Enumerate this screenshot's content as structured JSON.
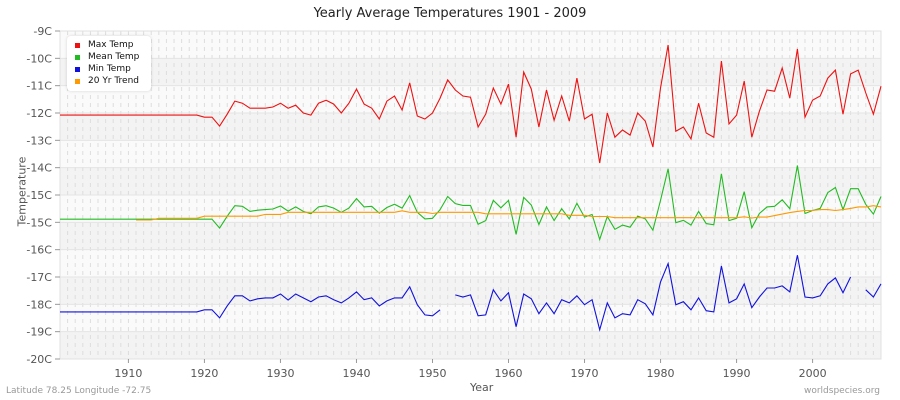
{
  "header": {
    "title": "Yearly Average Temperatures 1901 - 2009"
  },
  "axes": {
    "ylabel": "Temperature",
    "xlabel": "Year"
  },
  "footer": {
    "left": "Latitude 78.25 Longitude -72.75",
    "right": "worldspecies.org"
  },
  "legend": [
    {
      "label": "Max Temp",
      "color": "#ee1111"
    },
    {
      "label": "Mean Temp",
      "color": "#22bb22"
    },
    {
      "label": "Min Temp",
      "color": "#1111dd"
    },
    {
      "label": "20 Yr Trend",
      "color": "#ff9900"
    }
  ],
  "chart_data": {
    "type": "line",
    "title": "Yearly Average Temperatures 1901 - 2009",
    "xlabel": "Year",
    "ylabel": "Temperature",
    "x_start": 1901,
    "x_end": 2009,
    "ylim": [
      -20,
      -9
    ],
    "yticks": [
      "-9C",
      "-10C",
      "-11C",
      "-12C",
      "-13C",
      "-14C",
      "-15C",
      "-15C",
      "-16C",
      "-17C",
      "-18C",
      "-19C",
      "-20C"
    ],
    "xticks": [
      1910,
      1920,
      1930,
      1940,
      1950,
      1960,
      1970,
      1980,
      1990,
      2000
    ],
    "grid": true,
    "legend_position": "top-left",
    "series_pixels_note": "values in degrees C",
    "series": [
      {
        "name": "Max Temp",
        "color": "#ee1111",
        "start": 1901,
        "values": [
          -11.82,
          -11.82,
          -11.82,
          -11.82,
          -11.82,
          -11.82,
          -11.82,
          -11.82,
          -11.82,
          -11.82,
          -11.82,
          -11.82,
          -11.82,
          -11.82,
          -11.82,
          -11.82,
          -11.82,
          -11.82,
          -11.82,
          -11.89,
          -11.89,
          -12.19,
          -11.79,
          -11.35,
          -11.42,
          -11.59,
          -11.59,
          -11.59,
          -11.55,
          -11.42,
          -11.59,
          -11.49,
          -11.75,
          -11.82,
          -11.42,
          -11.32,
          -11.45,
          -11.75,
          -11.42,
          -10.95,
          -11.45,
          -11.59,
          -11.95,
          -11.35,
          -11.18,
          -11.65,
          -10.74,
          -11.85,
          -11.95,
          -11.75,
          -11.25,
          -10.64,
          -10.98,
          -11.18,
          -11.22,
          -12.22,
          -11.79,
          -10.91,
          -11.45,
          -10.78,
          -12.56,
          -10.38,
          -10.95,
          -12.22,
          -10.98,
          -11.99,
          -11.18,
          -12.02,
          -10.58,
          -11.95,
          -11.79,
          -13.43,
          -11.75,
          -12.56,
          -12.32,
          -12.49,
          -11.75,
          -12.02,
          -12.89,
          -10.91,
          -9.47,
          -12.36,
          -12.22,
          -12.62,
          -11.42,
          -12.42,
          -12.56,
          -10.01,
          -12.12,
          -11.82,
          -10.68,
          -12.56,
          -11.69,
          -10.98,
          -11.02,
          -10.24,
          -11.25,
          -9.6,
          -11.89,
          -11.32,
          -11.18,
          -10.58,
          -10.31,
          -11.79,
          -10.44,
          -10.31,
          -11.08,
          -11.79,
          -10.85
        ]
      },
      {
        "name": "Mean Temp",
        "color": "#22bb22",
        "start": 1901,
        "values": [
          -15.31,
          -15.31,
          -15.31,
          -15.31,
          -15.31,
          -15.31,
          -15.31,
          -15.31,
          -15.31,
          -15.31,
          -15.31,
          -15.31,
          -15.31,
          -15.31,
          -15.31,
          -15.31,
          -15.31,
          -15.31,
          -15.31,
          -15.31,
          -15.31,
          -15.61,
          -15.21,
          -14.86,
          -14.88,
          -15.05,
          -15.01,
          -14.99,
          -14.97,
          -14.87,
          -15.04,
          -14.9,
          -15.05,
          -15.13,
          -14.9,
          -14.86,
          -14.94,
          -15.08,
          -14.94,
          -14.62,
          -14.9,
          -14.88,
          -15.11,
          -14.92,
          -14.81,
          -14.94,
          -14.52,
          -15.08,
          -15.3,
          -15.28,
          -14.99,
          -14.55,
          -14.79,
          -14.85,
          -14.85,
          -15.48,
          -15.36,
          -14.68,
          -14.93,
          -14.68,
          -15.82,
          -14.58,
          -14.84,
          -15.49,
          -14.9,
          -15.36,
          -14.96,
          -15.3,
          -14.78,
          -15.24,
          -15.15,
          -15.99,
          -15.22,
          -15.65,
          -15.51,
          -15.58,
          -15.21,
          -15.3,
          -15.68,
          -14.68,
          -13.62,
          -15.43,
          -15.35,
          -15.51,
          -15.05,
          -15.46,
          -15.5,
          -13.79,
          -15.36,
          -15.28,
          -14.39,
          -15.6,
          -15.12,
          -14.9,
          -14.88,
          -14.66,
          -14.96,
          -13.51,
          -15.12,
          -15.02,
          -14.95,
          -14.42,
          -14.25,
          -14.99,
          -14.29,
          -14.29,
          -14.82,
          -15.14,
          -14.55
        ]
      },
      {
        "name": "Min Temp",
        "color": "#1111dd",
        "start": 1901,
        "values": [
          -18.42,
          -18.42,
          -18.42,
          -18.42,
          -18.42,
          -18.42,
          -18.42,
          -18.42,
          -18.42,
          -18.42,
          -18.42,
          -18.42,
          -18.42,
          -18.42,
          -18.42,
          -18.42,
          -18.42,
          -18.42,
          -18.42,
          -18.35,
          -18.35,
          -18.62,
          -18.22,
          -17.88,
          -17.88,
          -18.05,
          -17.98,
          -17.95,
          -17.95,
          -17.82,
          -18.02,
          -17.82,
          -17.95,
          -18.08,
          -17.92,
          -17.88,
          -18.01,
          -18.12,
          -17.95,
          -17.75,
          -18.01,
          -17.95,
          -18.22,
          -18.05,
          -17.95,
          -17.95,
          -17.58,
          -18.18,
          -18.52,
          -18.55,
          -18.35,
          null,
          -17.85,
          -17.92,
          -17.85,
          -18.55,
          -18.52,
          -17.68,
          -18.05,
          -17.78,
          -18.92,
          -17.82,
          -17.98,
          -18.48,
          -18.12,
          -18.48,
          -18.01,
          -18.12,
          -17.88,
          -18.18,
          -18.01,
          -19.02,
          -18.12,
          -18.62,
          -18.48,
          -18.52,
          -18.01,
          -18.15,
          -18.52,
          -17.42,
          -16.8,
          -18.18,
          -18.08,
          -18.35,
          -17.95,
          -18.38,
          -18.42,
          -16.88,
          -18.12,
          -17.98,
          -17.48,
          -18.28,
          -17.92,
          -17.62,
          -17.62,
          -17.55,
          -17.75,
          -16.52,
          -17.92,
          -17.95,
          -17.88,
          -17.48,
          -17.28,
          -17.78,
          -17.25,
          null,
          -17.68,
          -17.92,
          -17.48
        ]
      },
      {
        "name": "20 Yr Trend",
        "color": "#ff9900",
        "start": 1911,
        "values": [
          -15.34,
          -15.34,
          -15.34,
          -15.28,
          -15.28,
          -15.28,
          -15.28,
          -15.28,
          -15.28,
          -15.21,
          -15.21,
          -15.21,
          -15.21,
          -15.21,
          -15.21,
          -15.21,
          -15.21,
          -15.15,
          -15.15,
          -15.15,
          -15.08,
          -15.08,
          -15.08,
          -15.08,
          -15.08,
          -15.08,
          -15.08,
          -15.08,
          -15.08,
          -15.08,
          -15.08,
          -15.08,
          -15.08,
          -15.08,
          -15.08,
          -15.03,
          -15.08,
          -15.08,
          -15.08,
          -15.12,
          -15.08,
          -15.08,
          -15.08,
          -15.08,
          -15.08,
          -15.08,
          -15.13,
          -15.13,
          -15.13,
          -15.13,
          -15.13,
          -15.13,
          -15.13,
          -15.13,
          -15.13,
          -15.13,
          -15.13,
          -15.18,
          -15.18,
          -15.18,
          -15.22,
          -15.22,
          -15.22,
          -15.26,
          -15.26,
          -15.26,
          -15.26,
          -15.26,
          -15.26,
          -15.26,
          -15.26,
          -15.26,
          -15.26,
          -15.26,
          -15.26,
          -15.26,
          -15.26,
          -15.26,
          -15.26,
          -15.26,
          -15.23,
          -15.27,
          -15.24,
          -15.24,
          -15.19,
          -15.14,
          -15.09,
          -15.05,
          -15.02,
          -15.02,
          -14.99,
          -14.99,
          -15.02,
          -14.99,
          -14.95,
          -14.9,
          -14.9,
          -14.86,
          -14.9
        ]
      }
    ]
  }
}
